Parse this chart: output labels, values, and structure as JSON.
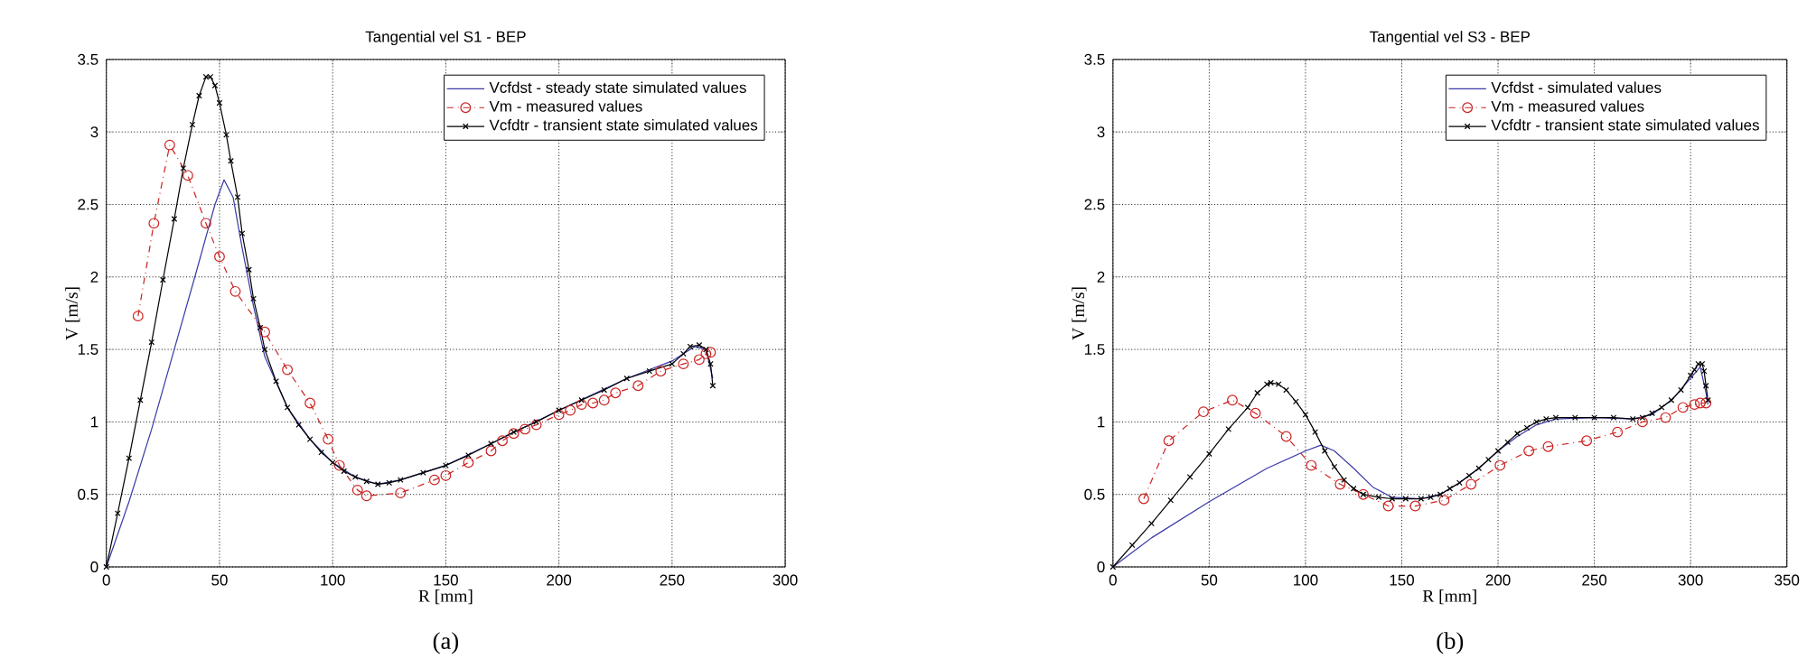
{
  "chart_data": [
    {
      "type": "line",
      "title": "Tangential vel S1 - BEP",
      "xlabel": "R [mm]",
      "ylabel": "V [m/s]",
      "annotations": [
        "(a)"
      ],
      "xlim": [
        0,
        300
      ],
      "ylim": [
        0,
        3.5
      ],
      "xticks": [
        0,
        50,
        100,
        150,
        200,
        250,
        300
      ],
      "yticks": [
        0,
        0.5,
        1,
        1.5,
        2,
        2.5,
        3,
        3.5
      ],
      "grid": true,
      "legend": "top right",
      "series": [
        {
          "name": "Vcfdst -  steady state simulated values",
          "color": "#3a3aa8",
          "marker": "none",
          "line_style": "solid",
          "x": [
            0,
            10,
            20,
            30,
            40,
            48,
            52,
            56,
            60,
            65,
            70,
            80,
            90,
            100,
            110,
            120,
            130,
            150,
            170,
            200,
            230,
            250,
            260,
            265,
            268
          ],
          "values": [
            0,
            0.45,
            0.95,
            1.5,
            2.05,
            2.5,
            2.67,
            2.55,
            2.2,
            1.8,
            1.45,
            1.1,
            0.88,
            0.72,
            0.62,
            0.57,
            0.6,
            0.7,
            0.85,
            1.08,
            1.3,
            1.42,
            1.52,
            1.5,
            1.3
          ]
        },
        {
          "name": "Vm - measured values",
          "color": "#cc2222",
          "marker": "circle",
          "line_style": "dashed",
          "x": [
            14,
            21,
            28,
            36,
            44,
            50,
            57,
            70,
            80,
            90,
            98,
            103,
            111,
            115,
            130,
            145,
            150,
            160,
            170,
            175,
            180,
            185,
            190,
            200,
            205,
            210,
            215,
            220,
            225,
            235,
            245,
            255,
            262,
            265,
            267
          ],
          "values": [
            1.73,
            2.37,
            2.91,
            2.7,
            2.37,
            2.14,
            1.9,
            1.62,
            1.36,
            1.13,
            0.88,
            0.7,
            0.53,
            0.49,
            0.51,
            0.6,
            0.63,
            0.72,
            0.8,
            0.87,
            0.92,
            0.95,
            0.98,
            1.05,
            1.08,
            1.12,
            1.13,
            1.15,
            1.2,
            1.25,
            1.35,
            1.4,
            1.43,
            1.47,
            1.48
          ]
        },
        {
          "name": "Vcfdtr -  transient state simulated values",
          "color": "#000000",
          "marker": "cross",
          "line_style": "solid",
          "x": [
            0,
            5,
            10,
            15,
            20,
            25,
            30,
            34,
            38,
            41,
            44,
            46,
            48,
            50,
            53,
            55,
            58,
            60,
            63,
            65,
            68,
            70,
            75,
            80,
            85,
            90,
            95,
            100,
            105,
            110,
            115,
            120,
            125,
            130,
            140,
            150,
            160,
            170,
            180,
            190,
            200,
            210,
            220,
            230,
            240,
            250,
            255,
            258,
            262,
            265,
            267,
            268
          ],
          "values": [
            0,
            0.37,
            0.75,
            1.15,
            1.55,
            1.98,
            2.4,
            2.75,
            3.05,
            3.25,
            3.38,
            3.38,
            3.32,
            3.2,
            2.98,
            2.8,
            2.55,
            2.3,
            2.05,
            1.85,
            1.65,
            1.5,
            1.28,
            1.1,
            0.98,
            0.88,
            0.79,
            0.72,
            0.66,
            0.62,
            0.59,
            0.57,
            0.58,
            0.6,
            0.65,
            0.7,
            0.77,
            0.85,
            0.93,
            1.0,
            1.08,
            1.15,
            1.22,
            1.3,
            1.35,
            1.4,
            1.47,
            1.52,
            1.53,
            1.5,
            1.4,
            1.25
          ]
        }
      ]
    },
    {
      "type": "line",
      "title": "Tangential vel S3 - BEP",
      "xlabel": "R [mm]",
      "ylabel": "V [m/s]",
      "annotations": [
        "(b)"
      ],
      "xlim": [
        0,
        350
      ],
      "ylim": [
        0,
        3.5
      ],
      "xticks": [
        0,
        50,
        100,
        150,
        200,
        250,
        300,
        350
      ],
      "yticks": [
        0,
        0.5,
        1,
        1.5,
        2,
        2.5,
        3,
        3.5
      ],
      "grid": true,
      "legend": "top right",
      "series": [
        {
          "name": "Vcfdst - simulated values",
          "color": "#3a3aa8",
          "marker": "none",
          "line_style": "solid",
          "x": [
            0,
            20,
            50,
            80,
            100,
            108,
            115,
            125,
            135,
            145,
            160,
            170,
            180,
            190,
            200,
            210,
            220,
            230,
            250,
            270,
            280,
            290,
            300,
            305,
            308,
            309
          ],
          "values": [
            0,
            0.2,
            0.45,
            0.68,
            0.8,
            0.84,
            0.8,
            0.68,
            0.55,
            0.48,
            0.47,
            0.5,
            0.58,
            0.68,
            0.8,
            0.9,
            0.98,
            1.02,
            1.03,
            1.02,
            1.05,
            1.15,
            1.3,
            1.38,
            1.2,
            1.12
          ]
        },
        {
          "name": "Vm - measured values",
          "color": "#cc2222",
          "marker": "circle",
          "line_style": "dashed",
          "x": [
            16,
            29,
            47,
            62,
            74,
            90,
            103,
            118,
            130,
            143,
            157,
            172,
            186,
            201,
            216,
            226,
            246,
            262,
            275,
            287,
            296,
            302,
            305,
            308
          ],
          "values": [
            0.47,
            0.87,
            1.07,
            1.15,
            1.06,
            0.9,
            0.7,
            0.57,
            0.5,
            0.42,
            0.42,
            0.46,
            0.57,
            0.7,
            0.8,
            0.83,
            0.87,
            0.93,
            1.0,
            1.03,
            1.1,
            1.12,
            1.13,
            1.13
          ]
        },
        {
          "name": "Vcfdtr -  transient state simulated values",
          "color": "#000000",
          "marker": "cross",
          "line_style": "solid",
          "x": [
            0,
            10,
            20,
            30,
            40,
            50,
            60,
            70,
            75,
            80,
            82,
            86,
            90,
            95,
            100,
            105,
            110,
            115,
            120,
            125,
            130,
            138,
            145,
            152,
            160,
            165,
            170,
            175,
            180,
            185,
            190,
            195,
            200,
            205,
            210,
            215,
            220,
            225,
            230,
            240,
            250,
            260,
            270,
            275,
            280,
            285,
            290,
            295,
            300,
            302,
            304,
            306,
            307,
            308,
            309
          ],
          "values": [
            0,
            0.15,
            0.3,
            0.46,
            0.62,
            0.78,
            0.95,
            1.1,
            1.2,
            1.26,
            1.27,
            1.26,
            1.22,
            1.14,
            1.05,
            0.93,
            0.8,
            0.69,
            0.6,
            0.54,
            0.5,
            0.48,
            0.47,
            0.47,
            0.47,
            0.48,
            0.5,
            0.54,
            0.58,
            0.63,
            0.68,
            0.74,
            0.8,
            0.86,
            0.92,
            0.96,
            1.0,
            1.02,
            1.03,
            1.03,
            1.03,
            1.03,
            1.02,
            1.03,
            1.06,
            1.1,
            1.15,
            1.22,
            1.32,
            1.36,
            1.4,
            1.4,
            1.35,
            1.25,
            1.15
          ]
        }
      ]
    }
  ]
}
